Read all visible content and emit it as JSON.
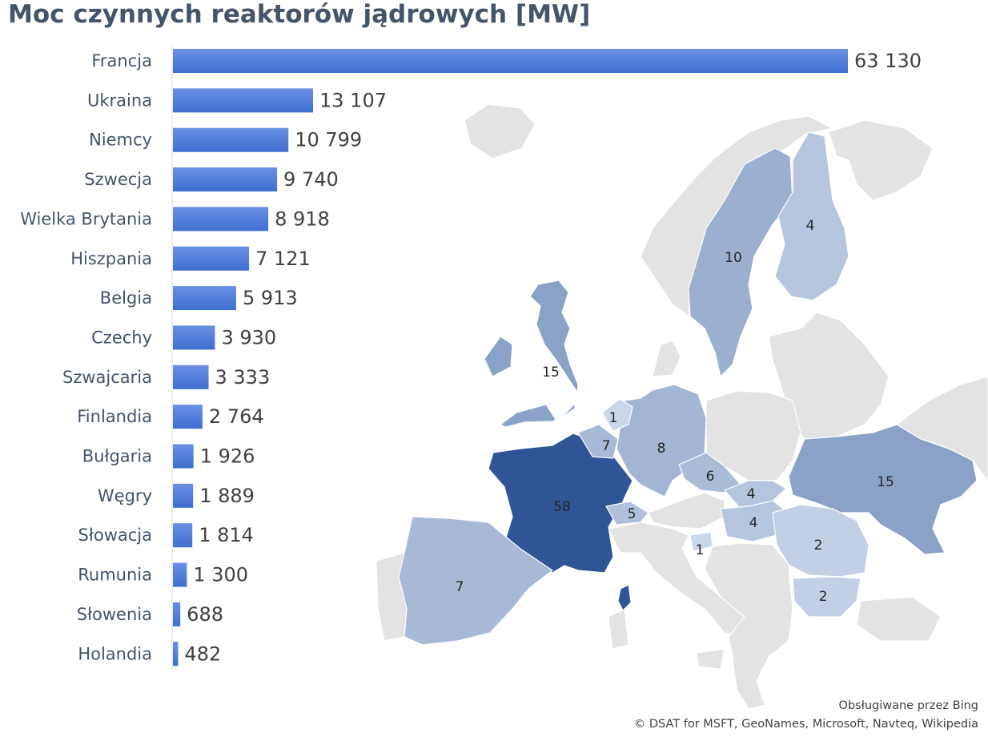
{
  "title": "Moc czynnych reaktorów jądrowych [MW]",
  "chart_data": [
    {
      "type": "bar",
      "orientation": "horizontal",
      "categories": [
        "Francja",
        "Ukraina",
        "Niemcy",
        "Szwecja",
        "Wielka Brytania",
        "Hiszpania",
        "Belgia",
        "Czechy",
        "Szwajcaria",
        "Finlandia",
        "Bułgaria",
        "Węgry",
        "Słowacja",
        "Rumunia",
        "Słowenia",
        "Holandia"
      ],
      "values": [
        63130,
        13107,
        10799,
        9740,
        8918,
        7121,
        5913,
        3930,
        3333,
        2764,
        1926,
        1889,
        1814,
        1300,
        688,
        482
      ],
      "value_labels": [
        "63 130",
        "13 107",
        "10 799",
        "9 740",
        "8 918",
        "7 121",
        "5 913",
        "3 930",
        "3 333",
        "2 764",
        "1 926",
        "1 889",
        "1 814",
        "1 300",
        "688",
        "482"
      ],
      "bar_color": "#3f6fd1",
      "bar_gradient_light": "#6a90e3",
      "grid": false
    },
    {
      "type": "choropleth-map",
      "region": "Europe",
      "unit": "reactors (count)",
      "regions": [
        {
          "name": "Francja",
          "value": 58,
          "label": "58"
        },
        {
          "name": "Wielka Brytania",
          "value": 15,
          "label": "15"
        },
        {
          "name": "Ukraina",
          "value": 15,
          "label": "15"
        },
        {
          "name": "Szwecja",
          "value": 10,
          "label": "10"
        },
        {
          "name": "Niemcy",
          "value": 8,
          "label": "8"
        },
        {
          "name": "Hiszpania",
          "value": 7,
          "label": "7"
        },
        {
          "name": "Belgia",
          "value": 7,
          "label": "7"
        },
        {
          "name": "Czechy",
          "value": 6,
          "label": "6"
        },
        {
          "name": "Szwajcaria",
          "value": 5,
          "label": "5"
        },
        {
          "name": "Finlandia",
          "value": 4,
          "label": "4"
        },
        {
          "name": "Słowacja",
          "value": 4,
          "label": "4"
        },
        {
          "name": "Węgry",
          "value": 4,
          "label": "4"
        },
        {
          "name": "Rumunia",
          "value": 2,
          "label": "2"
        },
        {
          "name": "Bułgaria",
          "value": 2,
          "label": "2"
        },
        {
          "name": "Holandia",
          "value": 1,
          "label": "1"
        },
        {
          "name": "Słowenia",
          "value": 1,
          "label": "1"
        }
      ],
      "color_scale": [
        "#dde6f4",
        "#2f5597"
      ],
      "no_data_color": "#e3e3e3"
    }
  ],
  "attribution": {
    "line1": "Obsługiwane przez Bing",
    "line2": "© DSAT for MSFT, GeoNames, Microsoft, Navteq, Wikipedia"
  }
}
